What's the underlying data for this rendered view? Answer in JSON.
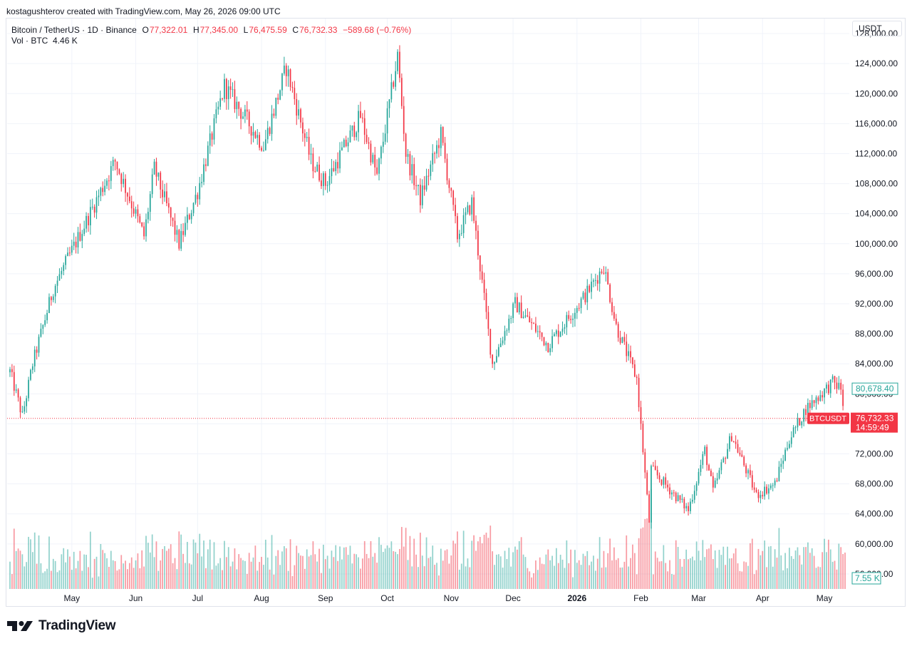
{
  "caption": "kostagushterov created with TradingView.com, May 26, 2026 09:00 UTC",
  "legend": {
    "symbol": "Bitcoin / TetherUS · 1D · Binance",
    "o_key": "O",
    "o_val": "77,322.01",
    "h_key": "H",
    "h_val": "77,345.00",
    "l_key": "L",
    "l_val": "76,475.59",
    "c_key": "C",
    "c_val": "76,732.33",
    "change": "−589.68 (−0.76%)",
    "vol_label": "Vol · BTC",
    "vol_val": "4.46 K"
  },
  "currency": "USDT",
  "brand": "TradingView",
  "colors": {
    "up": "#26a69a",
    "down": "#f23645",
    "grid": "#f0f3fa",
    "text": "#131722"
  },
  "chart_data": {
    "type": "candlestick",
    "symbol": "BTCUSDT",
    "interval": "1D",
    "x_range": [
      "Apr",
      "May"
    ],
    "x_ticks": [
      "May",
      "Jun",
      "Jul",
      "Aug",
      "Sep",
      "Oct",
      "Nov",
      "Dec",
      "2026",
      "Feb",
      "Mar",
      "Apr",
      "May"
    ],
    "y_ticks": [
      "128,000.00",
      "124,000.00",
      "120,000.00",
      "116,000.00",
      "112,000.00",
      "108,000.00",
      "104,000.00",
      "100,000.00",
      "96,000.00",
      "92,000.00",
      "88,000.00",
      "84,000.00",
      "80,000.00",
      "76,000.00",
      "72,000.00",
      "68,000.00",
      "64,000.00",
      "60,000.00",
      "56,000.00"
    ],
    "ylim": [
      54000,
      130000
    ],
    "last_price_label": "BTCUSDT",
    "last_price": "76,732.33",
    "countdown": "14:59:49",
    "crosshair_price": "80,678.40",
    "volume_label": "7.55 K",
    "price_path": [
      {
        "date": "2025-04-01",
        "close": 83000
      },
      {
        "date": "2025-04-07",
        "close": 77000
      },
      {
        "date": "2025-04-12",
        "close": 84000
      },
      {
        "date": "2025-04-22",
        "close": 94000
      },
      {
        "date": "2025-05-08",
        "close": 103000
      },
      {
        "date": "2025-05-22",
        "close": 111000
      },
      {
        "date": "2025-06-05",
        "close": 101000
      },
      {
        "date": "2025-06-10",
        "close": 110000
      },
      {
        "date": "2025-06-22",
        "close": 100000
      },
      {
        "date": "2025-07-01",
        "close": 107000
      },
      {
        "date": "2025-07-14",
        "close": 121000
      },
      {
        "date": "2025-08-02",
        "close": 113000
      },
      {
        "date": "2025-08-13",
        "close": 123500
      },
      {
        "date": "2025-08-25",
        "close": 111000
      },
      {
        "date": "2025-09-01",
        "close": 108000
      },
      {
        "date": "2025-09-18",
        "close": 117000
      },
      {
        "date": "2025-09-26",
        "close": 109000
      },
      {
        "date": "2025-10-06",
        "close": 125000
      },
      {
        "date": "2025-10-10",
        "close": 112000
      },
      {
        "date": "2025-10-17",
        "close": 106000
      },
      {
        "date": "2025-10-27",
        "close": 114500
      },
      {
        "date": "2025-11-04",
        "close": 101000
      },
      {
        "date": "2025-11-11",
        "close": 105500
      },
      {
        "date": "2025-11-21",
        "close": 84000
      },
      {
        "date": "2025-12-02",
        "close": 92000
      },
      {
        "date": "2025-12-18",
        "close": 86500
      },
      {
        "date": "2026-01-06",
        "close": 93500
      },
      {
        "date": "2026-01-14",
        "close": 97000
      },
      {
        "date": "2026-01-20",
        "close": 89000
      },
      {
        "date": "2026-01-30",
        "close": 82000
      },
      {
        "date": "2026-02-05",
        "close": 63000
      },
      {
        "date": "2026-02-06",
        "close": 70000
      },
      {
        "date": "2026-02-24",
        "close": 64500
      },
      {
        "date": "2026-03-04",
        "close": 72500
      },
      {
        "date": "2026-03-08",
        "close": 67000
      },
      {
        "date": "2026-03-17",
        "close": 74500
      },
      {
        "date": "2026-03-29",
        "close": 66500
      },
      {
        "date": "2026-04-07",
        "close": 68000
      },
      {
        "date": "2026-04-14",
        "close": 74000
      },
      {
        "date": "2026-04-22",
        "close": 78000
      },
      {
        "date": "2026-05-05",
        "close": 81500
      },
      {
        "date": "2026-05-09",
        "close": 80700
      },
      {
        "date": "2026-05-11",
        "close": 76732
      }
    ]
  }
}
